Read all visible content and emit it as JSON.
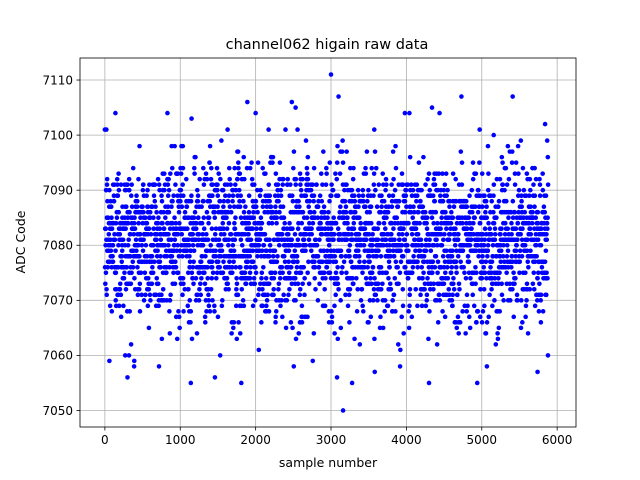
{
  "chart_data": {
    "type": "scatter",
    "title": "channel062 higain raw data",
    "xlabel": "sample number",
    "ylabel": "ADC Code",
    "xlim": [
      -330,
      6250
    ],
    "ylim": [
      7047,
      7114
    ],
    "xticks": [
      0,
      1000,
      2000,
      3000,
      4000,
      5000,
      6000
    ],
    "yticks": [
      7050,
      7060,
      7070,
      7080,
      7090,
      7100,
      7110
    ],
    "xtick_labels": [
      "0",
      "1000",
      "2000",
      "3000",
      "4000",
      "5000",
      "6000"
    ],
    "ytick_labels": [
      "7050",
      "7060",
      "7070",
      "7080",
      "7090",
      "7100",
      "7110"
    ],
    "grid": true,
    "marker_color": "#0000ff",
    "series": [
      {
        "x_range": [
          0,
          5880
        ],
        "x_step": 2,
        "n_points": 2941,
        "y_center": 7081,
        "y_min": 7050,
        "y_max": 7111,
        "values_integer": true,
        "outliers": [
          {
            "x": 20,
            "y": 7101
          },
          {
            "x": 60,
            "y": 7059
          },
          {
            "x": 140,
            "y": 7104
          },
          {
            "x": 300,
            "y": 7056
          },
          {
            "x": 270,
            "y": 7060
          },
          {
            "x": 320,
            "y": 7060
          },
          {
            "x": 390,
            "y": 7059
          },
          {
            "x": 830,
            "y": 7104
          },
          {
            "x": 1140,
            "y": 7055
          },
          {
            "x": 1150,
            "y": 7103
          },
          {
            "x": 1460,
            "y": 7056
          },
          {
            "x": 1810,
            "y": 7055
          },
          {
            "x": 1890,
            "y": 7106
          },
          {
            "x": 2000,
            "y": 7104
          },
          {
            "x": 2480,
            "y": 7106
          },
          {
            "x": 2530,
            "y": 7105
          },
          {
            "x": 3000,
            "y": 7111
          },
          {
            "x": 3100,
            "y": 7107
          },
          {
            "x": 3080,
            "y": 7056
          },
          {
            "x": 3160,
            "y": 7050
          },
          {
            "x": 3280,
            "y": 7055
          },
          {
            "x": 3580,
            "y": 7057
          },
          {
            "x": 3980,
            "y": 7104
          },
          {
            "x": 4040,
            "y": 7104
          },
          {
            "x": 4300,
            "y": 7055
          },
          {
            "x": 4340,
            "y": 7105
          },
          {
            "x": 4440,
            "y": 7104
          },
          {
            "x": 4730,
            "y": 7107
          },
          {
            "x": 4940,
            "y": 7055
          },
          {
            "x": 5410,
            "y": 7107
          },
          {
            "x": 5740,
            "y": 7057
          },
          {
            "x": 5840,
            "y": 7102
          }
        ]
      }
    ]
  }
}
